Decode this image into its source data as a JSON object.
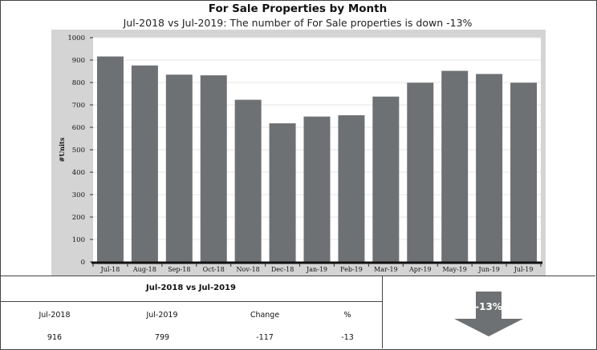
{
  "header": {
    "title": "For Sale Properties by Month",
    "subtitle": "Jul-2018 vs Jul-2019: The number of For Sale properties is down -13%"
  },
  "chart_data": {
    "type": "bar",
    "categories": [
      "Jul-18",
      "Aug-18",
      "Sep-18",
      "Oct-18",
      "Nov-18",
      "Dec-18",
      "Jan-19",
      "Feb-19",
      "Mar-19",
      "Apr-19",
      "May-19",
      "Jun-19",
      "Jul-19"
    ],
    "values": [
      916,
      876,
      835,
      832,
      723,
      618,
      648,
      654,
      737,
      799,
      852,
      838,
      799
    ],
    "ylabel": "#Units",
    "xlabel": "",
    "ylim": [
      0,
      1000
    ],
    "yticks": [
      0,
      100,
      200,
      300,
      400,
      500,
      600,
      700,
      800,
      900,
      1000
    ],
    "bar_color": "#6e7173",
    "panel_color": "#d4d4d4",
    "grid": true,
    "legend": false
  },
  "comparison": {
    "title": "Jul-2018 vs Jul-2019",
    "headers": [
      "Jul-2018",
      "Jul-2019",
      "Change",
      "%"
    ],
    "values": [
      "916",
      "799",
      "-117",
      "-13"
    ]
  },
  "indicator": {
    "label": "-13%",
    "direction": "down",
    "color": "#6e7173"
  }
}
